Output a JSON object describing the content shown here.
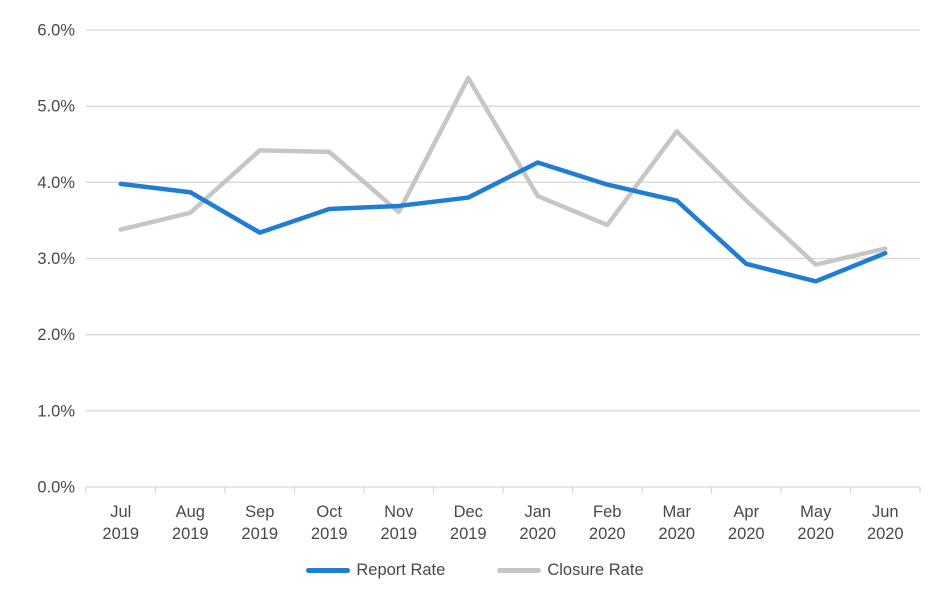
{
  "chart_data": {
    "type": "line",
    "title": "",
    "xlabel": "",
    "ylabel": "",
    "categories": [
      "Jul 2019",
      "Aug 2019",
      "Sep 2019",
      "Oct 2019",
      "Nov 2019",
      "Dec 2019",
      "Jan 2020",
      "Feb 2020",
      "Mar 2020",
      "Apr 2020",
      "May 2020",
      "Jun 2020"
    ],
    "series": [
      {
        "name": "Report Rate",
        "color": "#1f7dd4",
        "values": [
          3.98,
          3.87,
          3.34,
          3.65,
          3.69,
          3.8,
          4.26,
          3.97,
          3.76,
          2.93,
          2.7,
          3.07
        ]
      },
      {
        "name": "Closure Rate",
        "color": "#c6c6c6",
        "values": [
          3.38,
          3.6,
          4.42,
          4.4,
          3.61,
          5.37,
          3.82,
          3.44,
          4.67,
          3.76,
          2.92,
          3.13
        ]
      }
    ],
    "ylim": [
      0,
      6
    ],
    "y_ticks": [
      {
        "value": 0,
        "label": "0.0%"
      },
      {
        "value": 1,
        "label": "1.0%"
      },
      {
        "value": 2,
        "label": "2.0%"
      },
      {
        "value": 3,
        "label": "3.0%"
      },
      {
        "value": 4,
        "label": "4.0%"
      },
      {
        "value": 5,
        "label": "5.0%"
      },
      {
        "value": 6,
        "label": "6.0%"
      }
    ],
    "grid": "horizontal",
    "legend_position": "bottom"
  },
  "colors": {
    "background": "#ffffff",
    "gridline": "#d9d9d9",
    "tick": "#d9d9d9",
    "axis_text": "#45484d"
  }
}
